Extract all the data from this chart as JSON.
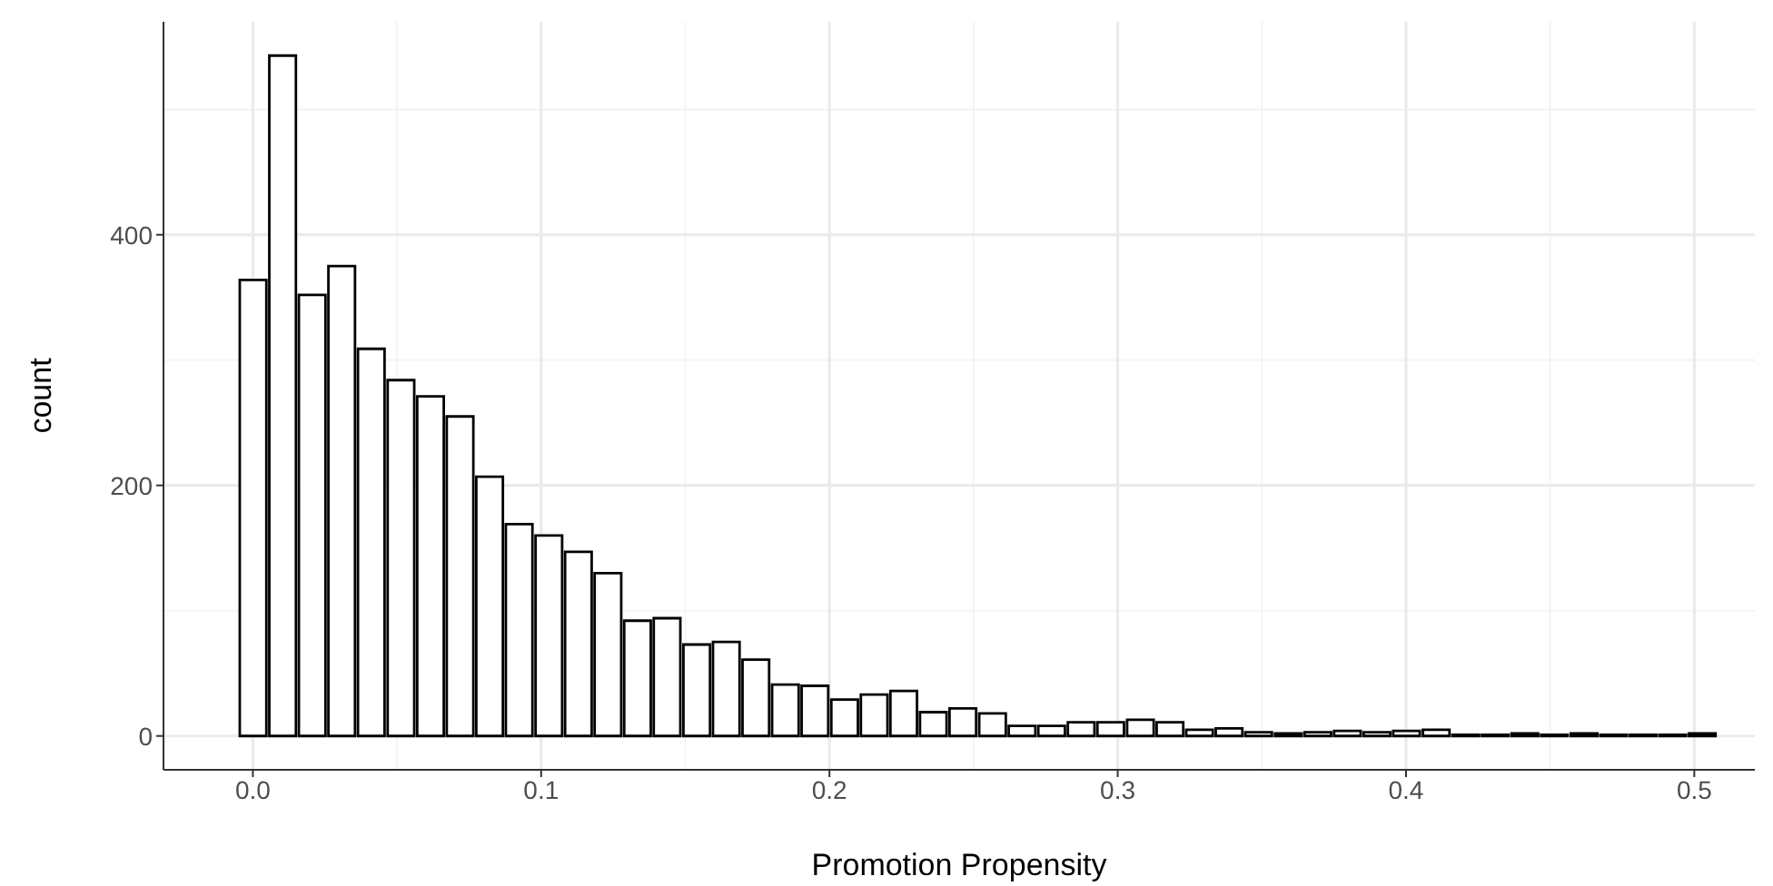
{
  "chart_data": {
    "type": "histogram",
    "xlabel": "Promotion Propensity",
    "ylabel": "count",
    "bins": [
      -0.0052,
      0.0051,
      0.0153,
      0.0256,
      0.0358,
      0.0461,
      0.0564,
      0.0666,
      0.0769,
      0.0871,
      0.0974,
      0.1077,
      0.1179,
      0.1282,
      0.1384,
      0.1487,
      0.159,
      0.1692,
      0.1795,
      0.1897,
      0.2,
      0.2103,
      0.2205,
      0.2308,
      0.241,
      0.2513,
      0.2616,
      0.2718,
      0.2821,
      0.2923,
      0.3026,
      0.3129,
      0.3231,
      0.3334,
      0.3436,
      0.3539,
      0.3642,
      0.3744,
      0.3847,
      0.3949,
      0.4052,
      0.4155,
      0.4257,
      0.436,
      0.4462,
      0.4565,
      0.4668,
      0.477,
      0.4873,
      0.4975,
      0.5078
    ],
    "values": [
      364,
      543,
      352,
      375,
      309,
      284,
      271,
      255,
      207,
      169,
      160,
      147,
      130,
      92,
      94,
      73,
      75,
      61,
      41,
      40,
      29,
      33,
      36,
      19,
      22,
      18,
      8,
      8,
      11,
      11,
      13,
      11,
      5,
      6,
      3,
      2,
      3,
      4,
      3,
      4,
      5,
      1,
      1,
      2,
      1,
      2,
      1,
      1,
      1,
      2
    ],
    "color": "#ffffff",
    "xlim": [
      -0.031,
      0.521
    ],
    "xticks": [
      {
        "value": 0,
        "label": "0.0"
      },
      {
        "value": 0.1,
        "label": "0.1"
      },
      {
        "value": 0.2,
        "label": "0.2"
      },
      {
        "value": 0.3,
        "label": "0.3"
      },
      {
        "value": 0.4,
        "label": "0.4"
      },
      {
        "value": 0.5,
        "label": "0.5"
      }
    ],
    "ylim": [
      -27,
      570
    ],
    "yticks": [
      0,
      200,
      400
    ],
    "grid": true
  }
}
